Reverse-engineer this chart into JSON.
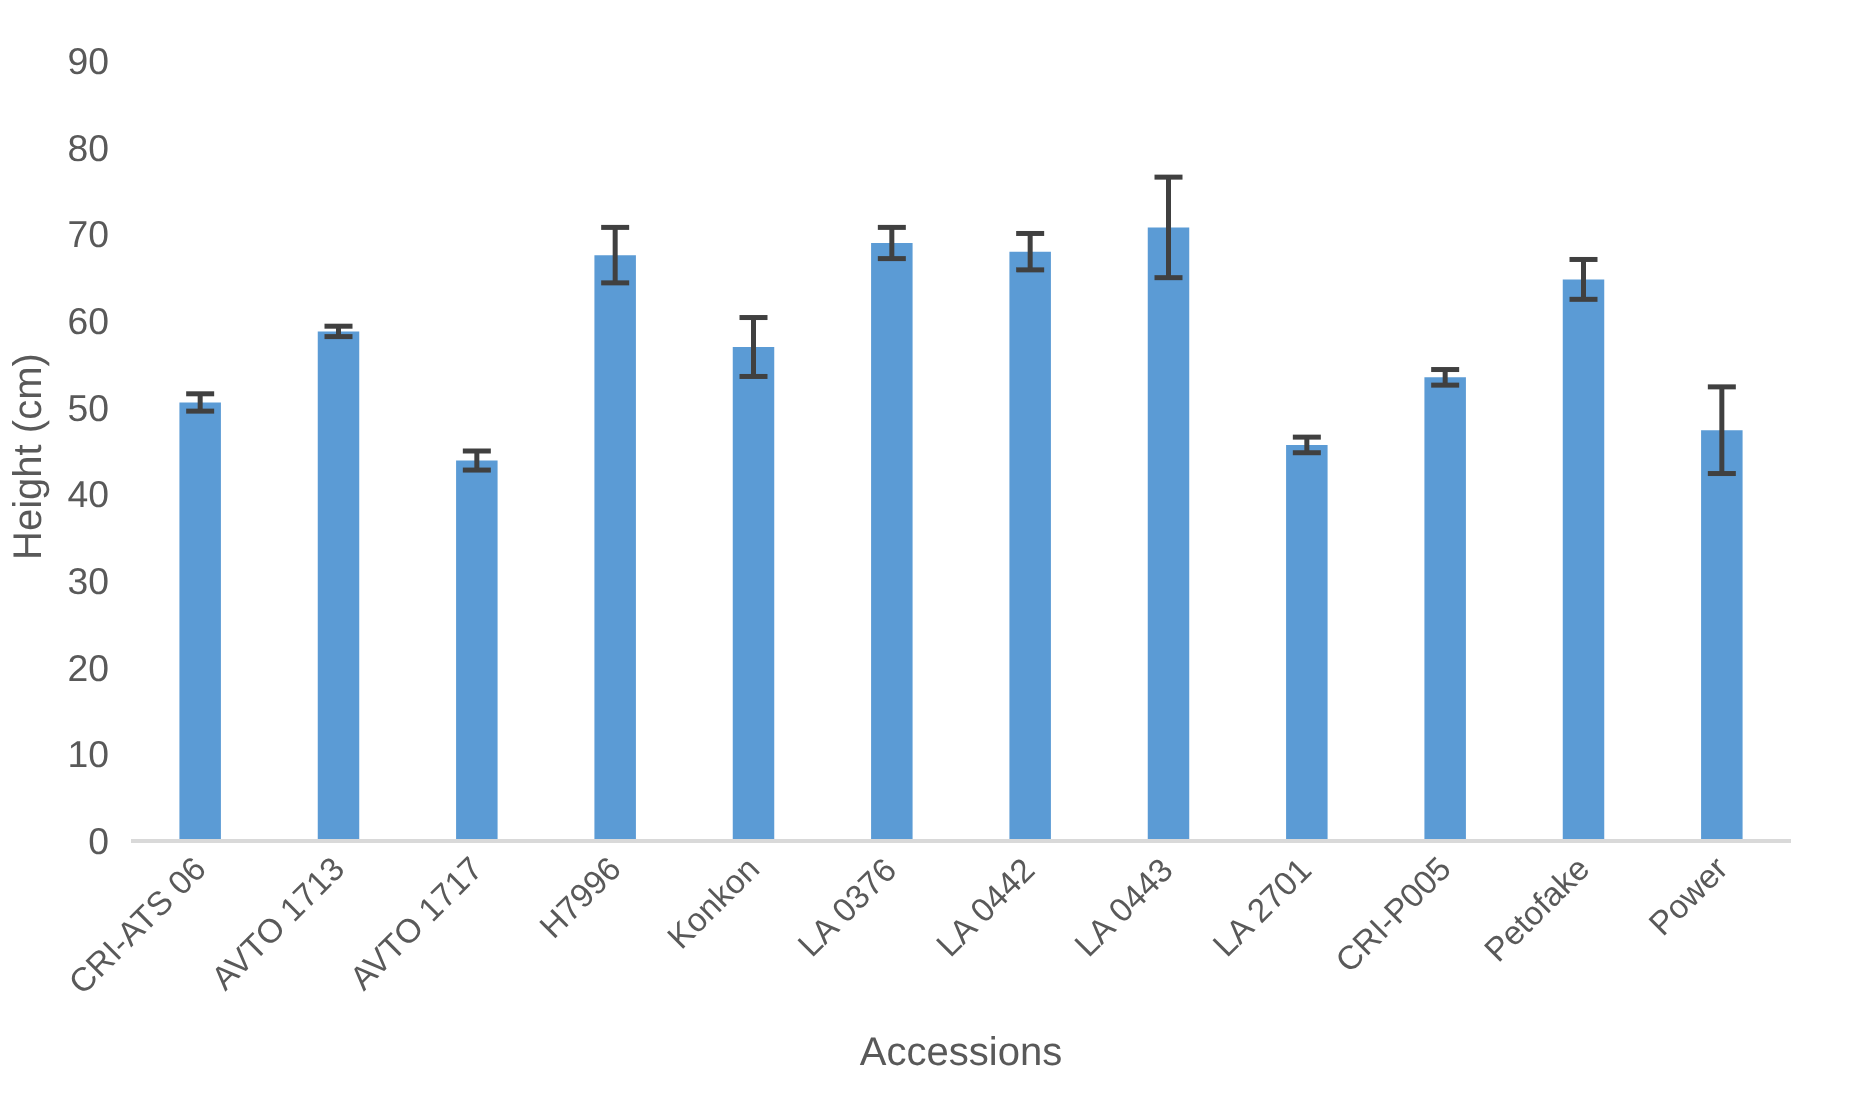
{
  "chart_data": {
    "type": "bar",
    "xlabel": "Accessions",
    "ylabel": "Height  (cm)",
    "categories": [
      "CRI-ATS 06",
      "AVTO 1713",
      "AVTO 1717",
      "H7996",
      "Konkon",
      "LA 0376",
      "LA 0442",
      "LA 0443",
      "LA 2701",
      "CRI-P005",
      "Petofake",
      "Power"
    ],
    "values": [
      50.6,
      58.8,
      43.9,
      67.6,
      57.0,
      69.0,
      68.0,
      70.8,
      45.7,
      53.5,
      64.8,
      47.4
    ],
    "errors": [
      1.0,
      0.6,
      1.1,
      3.2,
      3.4,
      1.8,
      2.1,
      5.8,
      0.9,
      0.9,
      2.3,
      5.0
    ],
    "color": "#5b9bd5",
    "ylim": [
      0,
      90
    ],
    "yticks": [
      0,
      10,
      20,
      30,
      40,
      50,
      60,
      70,
      80,
      90
    ],
    "grid": false
  }
}
